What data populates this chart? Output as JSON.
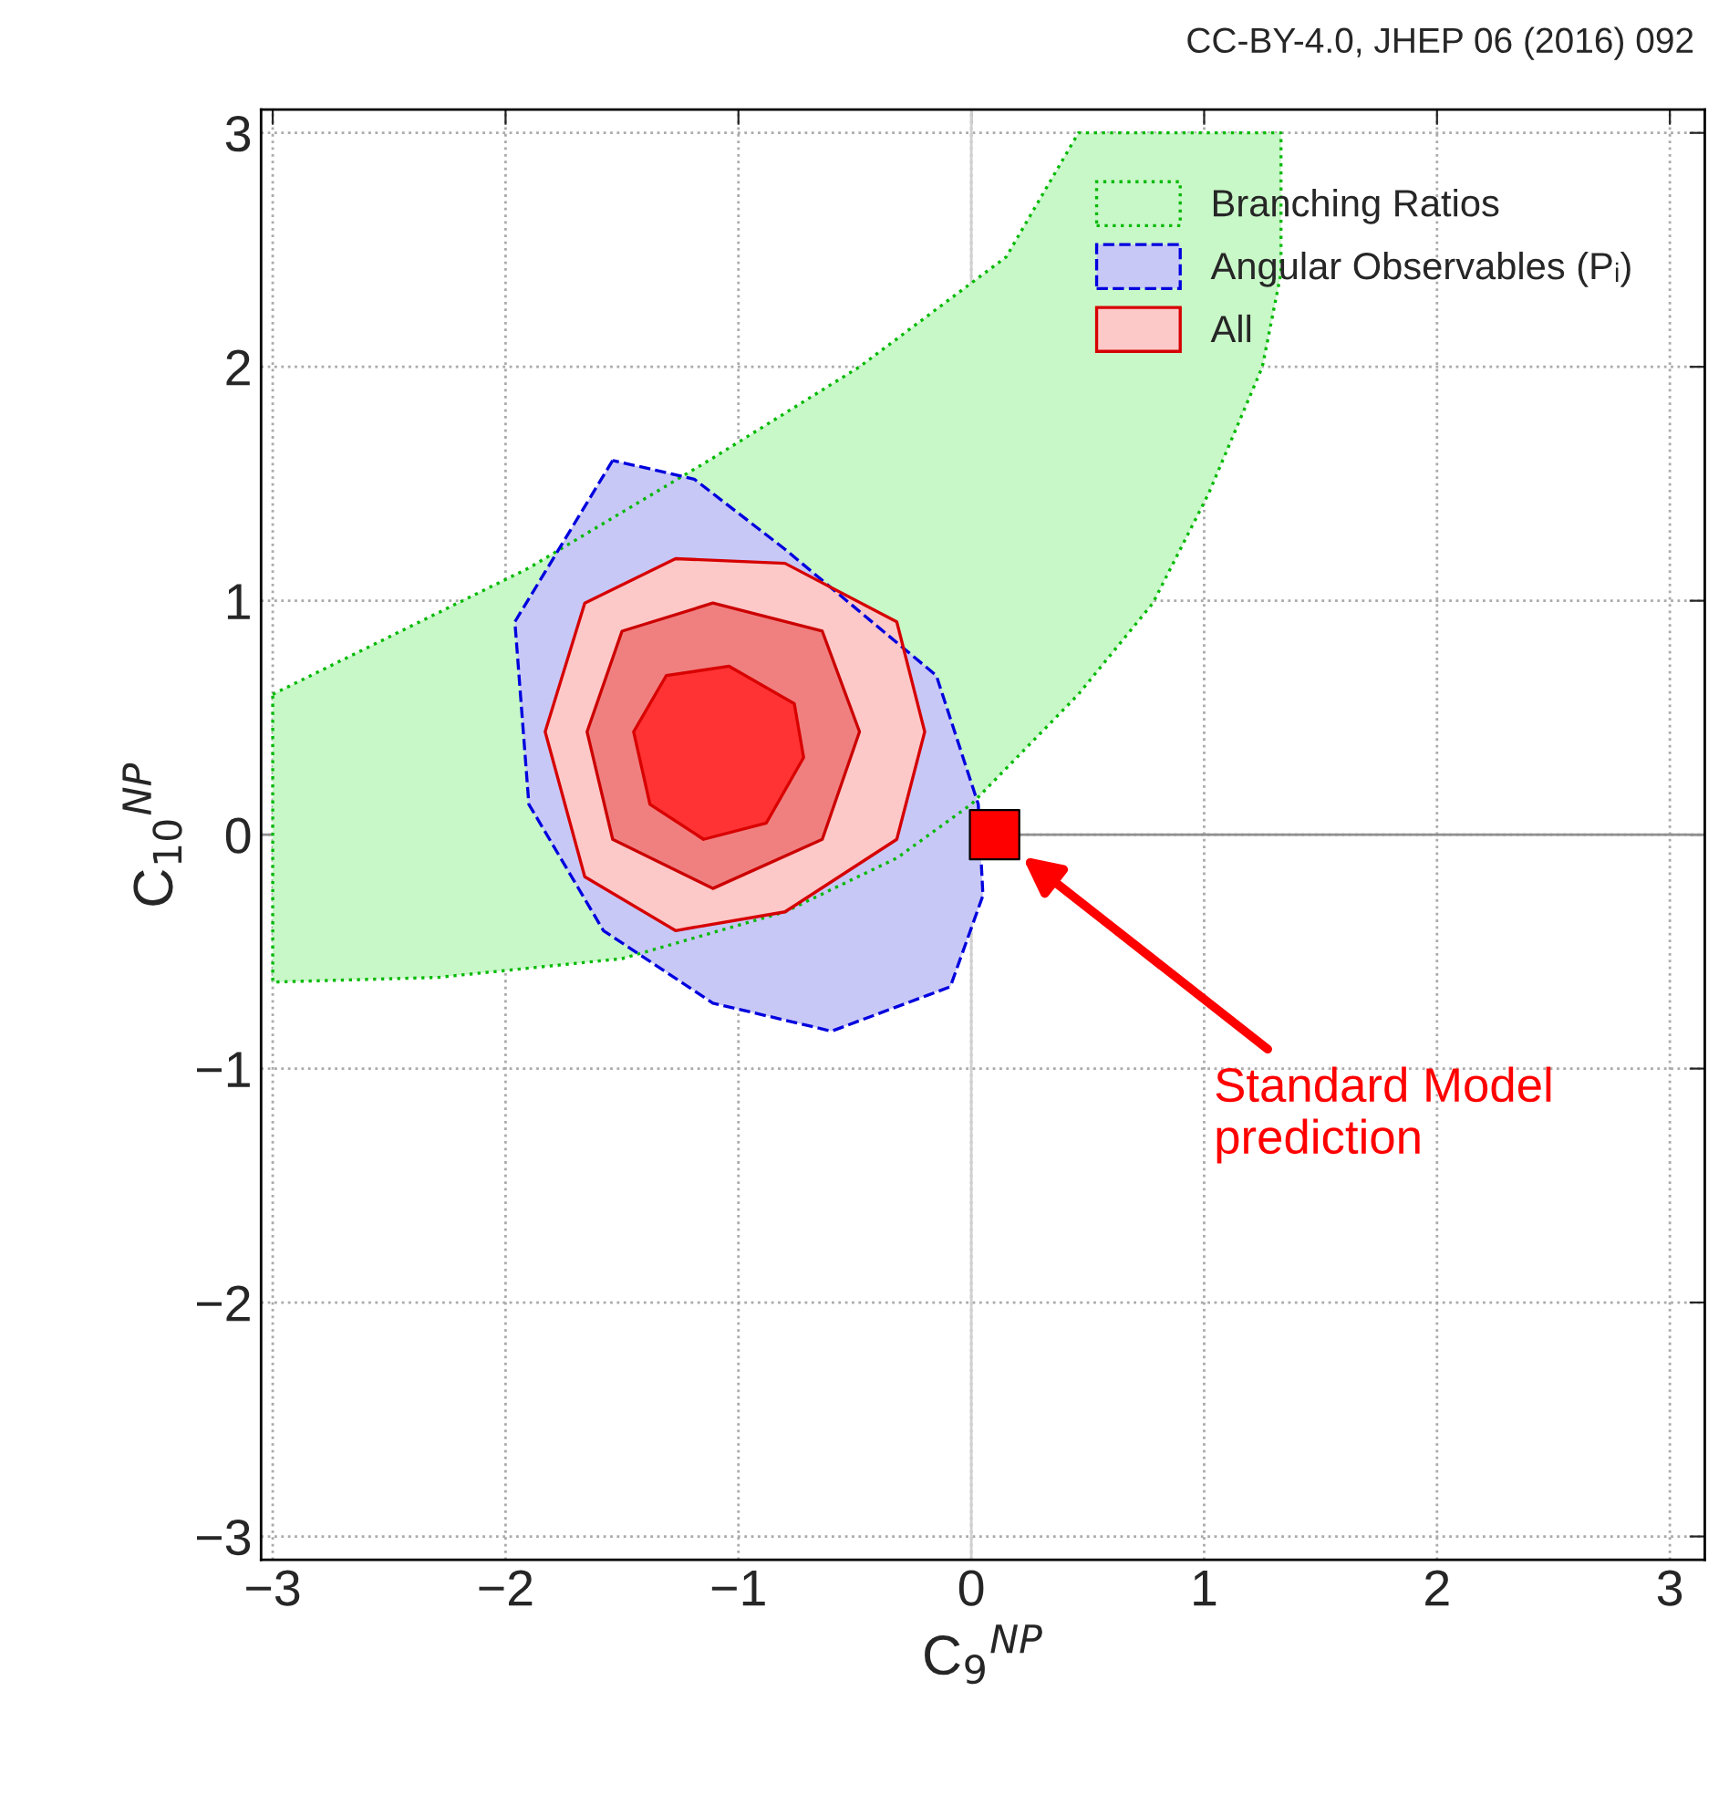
{
  "chart_data": {
    "type": "area",
    "xlabel": "C$_{9}$$^{NP}$",
    "ylabel": "C$_{10}$$^{NP}$",
    "xlim": [
      -3.05,
      3.15
    ],
    "ylim": [
      -3.1,
      3.1
    ],
    "xticks": [
      {
        "value": -3,
        "label": "−3"
      },
      {
        "value": -2,
        "label": "−2"
      },
      {
        "value": -1,
        "label": "−1"
      },
      0,
      1,
      2,
      3
    ],
    "yticks": [
      {
        "value": -3,
        "label": "−3"
      },
      {
        "value": -2,
        "label": "−2"
      },
      {
        "value": -1,
        "label": "−1"
      },
      0,
      1,
      2,
      3
    ],
    "grid": true,
    "legend": "top right",
    "ref_lines": [
      {
        "axis": "x",
        "value": 0,
        "color": "#d0d0d0"
      },
      {
        "axis": "y",
        "value": 0,
        "color": "#909090"
      }
    ],
    "annotations": [
      "CC-BY-4.0, JHEP 06 (2016) 092",
      "Standard Model\nprediction"
    ],
    "series": [
      {
        "name": "Branching Ratios",
        "color": "#c8f7c8",
        "line_style": "dotted",
        "x": [
          -3.0,
          -1.9,
          -1.11,
          -0.48,
          0.15,
          0.46,
          1.33,
          1.33,
          1.25,
          1.02,
          0.78,
          0.46,
          0.0,
          -0.32,
          -0.8,
          -1.5,
          -2.29,
          -3.0
        ],
        "values": [
          0.6,
          1.14,
          1.61,
          2.0,
          2.47,
          3.0,
          3.0,
          2.4,
          2.0,
          1.46,
          0.99,
          0.6,
          0.13,
          -0.1,
          -0.33,
          -0.53,
          -0.61,
          -0.63
        ]
      },
      {
        "name": "Angular Observables (Pᵢ)",
        "color": "#c8c8f7",
        "line_style": "dashed",
        "x": [
          -1.54,
          -1.96,
          -1.9,
          -1.58,
          -1.11,
          -0.6,
          -0.09,
          0.05,
          0.03,
          -0.15,
          -0.8,
          -1.19
        ],
        "values": [
          1.6,
          0.91,
          0.13,
          -0.41,
          -0.72,
          -0.84,
          -0.65,
          -0.26,
          0.13,
          0.68,
          1.22,
          1.52
        ]
      },
      {
        "name": "All",
        "color": "#fcc8c8",
        "line_style": "solid",
        "x": [
          -1.83,
          -1.66,
          -1.27,
          -0.8,
          -0.32,
          -0.2,
          -0.32,
          -0.8,
          -1.27,
          -1.66
        ],
        "values": [
          0.44,
          0.99,
          1.18,
          1.16,
          0.91,
          0.44,
          -0.02,
          -0.33,
          -0.41,
          -0.18
        ]
      },
      {
        "color": "#f08080",
        "line_style": "solid",
        "x": [
          -1.65,
          -1.5,
          -1.11,
          -0.64,
          -0.48,
          -0.64,
          -1.11,
          -1.54
        ],
        "values": [
          0.44,
          0.87,
          0.99,
          0.87,
          0.44,
          -0.02,
          -0.23,
          -0.02
        ]
      },
      {
        "color": "#ff3333",
        "line_style": "solid",
        "x": [
          -1.45,
          -1.31,
          -1.04,
          -0.76,
          -0.72,
          -0.88,
          -1.15,
          -1.38
        ],
        "values": [
          0.44,
          0.68,
          0.72,
          0.56,
          0.33,
          0.05,
          -0.02,
          0.13
        ]
      },
      {
        "type": "scatter",
        "color": "#ff0000",
        "marker": "square",
        "x": [
          0.1
        ],
        "values": [
          0.0
        ]
      }
    ]
  }
}
